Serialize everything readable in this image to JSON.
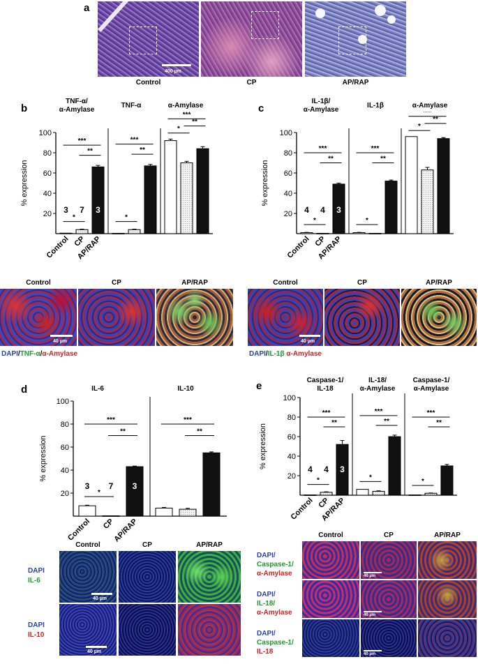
{
  "panel_a": {
    "label": "a",
    "captions": [
      "Control",
      "CP",
      "AP/RAP"
    ],
    "scale_bar": "400 µm"
  },
  "panel_b": {
    "label": "b",
    "headers": [
      "TNF-α/\nα-Amylase",
      "TNF-α",
      "α-Amylase"
    ],
    "ylabel": "% expression",
    "xlabels": [
      "Control",
      "CP",
      "AP/RAP"
    ],
    "n_labels": [
      "3",
      "7",
      "3"
    ],
    "yticks": [
      "100",
      "80",
      "60",
      "40",
      "20"
    ],
    "image_captions": [
      "Control",
      "CP",
      "AP/RAP"
    ],
    "scale_bar": "40 µm",
    "stain_legend": {
      "dapi": "DAPI",
      "sep1": "/",
      "marker": "TNF-α",
      "sep2": "/",
      "amylase": "α-Amylase"
    }
  },
  "panel_c": {
    "label": "c",
    "headers": [
      "IL-1β/\nα-Amylase",
      "IL-1β",
      "α-Amylase"
    ],
    "ylabel": "% expression",
    "xlabels": [
      "Control",
      "CP",
      "AP/RAP"
    ],
    "n_labels": [
      "4",
      "4",
      "3"
    ],
    "yticks": [
      "100",
      "80",
      "60",
      "40",
      "20"
    ],
    "image_captions": [
      "Control",
      "CP",
      "AP/RAP"
    ],
    "scale_bar": "40 µm",
    "stain_legend": {
      "dapi": "DAPI",
      "sep1": "/",
      "marker": "IL-1β",
      "sep2": " ",
      "amylase": "α-Amylase"
    }
  },
  "panel_d": {
    "label": "d",
    "headers": [
      "IL-6",
      "IL-10"
    ],
    "ylabel": "% expression",
    "xlabels": [
      "Control",
      "CP",
      "AP/RAP"
    ],
    "n_labels": [
      "3",
      "7",
      "3"
    ],
    "yticks": [
      "100",
      "80",
      "60",
      "40",
      "20"
    ],
    "image_captions": [
      "Control",
      "CP",
      "AP/RAP"
    ],
    "row_labels": [
      [
        "DAPI",
        "IL-6"
      ],
      [
        "DAPI",
        "IL-10"
      ]
    ],
    "scale_bar": "40 µm"
  },
  "panel_e": {
    "label": "e",
    "headers": [
      "Caspase-1/\nIL-18",
      "IL-18/\nα-Amylase",
      "Caspase-1/\nα-Amylase"
    ],
    "ylabel": "% expression",
    "xlabels": [
      "Control",
      "CP",
      "AP/RAP"
    ],
    "n_labels": [
      "4",
      "4",
      "3"
    ],
    "yticks": [
      "100",
      "80",
      "60",
      "40",
      "20"
    ],
    "image_captions": [
      "Control",
      "CP",
      "AP/RAP"
    ],
    "row_labels": [
      [
        "DAPI/",
        "Caspase-1/",
        "α-Amylase"
      ],
      [
        "DAPI/",
        "IL-18/",
        "α-Amylase"
      ],
      [
        "DAPI/",
        "Caspase-1/",
        "IL-18"
      ]
    ],
    "scale_bar": "40 µm"
  },
  "chart_data": [
    {
      "type": "bar",
      "panel": "b",
      "ylabel": "% expression",
      "ylim": [
        0,
        100
      ],
      "categories": [
        "Control",
        "CP",
        "AP/RAP"
      ],
      "groups": [
        {
          "name": "TNF-α/\nα-Amylase",
          "values": [
            0.5,
            4,
            66
          ],
          "errors": [
            0,
            0.5,
            1.5
          ],
          "brackets": [
            [
              0,
              2,
              "***"
            ],
            [
              1,
              2,
              "**"
            ],
            [
              0,
              1,
              "*"
            ]
          ]
        },
        {
          "name": "TNF-α",
          "values": [
            0.3,
            4,
            67
          ],
          "errors": [
            0,
            0.5,
            1.5
          ],
          "brackets": [
            [
              0,
              2,
              "***"
            ],
            [
              1,
              2,
              "**"
            ],
            [
              0,
              1,
              "*"
            ]
          ]
        },
        {
          "name": "α-Amylase",
          "values": [
            92,
            70,
            84
          ],
          "errors": [
            1.5,
            1.5,
            2
          ],
          "brackets": [
            [
              0,
              2,
              "***"
            ],
            [
              1,
              2,
              "**"
            ],
            [
              0,
              1,
              "*"
            ]
          ]
        }
      ]
    },
    {
      "type": "bar",
      "panel": "c",
      "ylabel": "% expression",
      "ylim": [
        0,
        100
      ],
      "categories": [
        "Control",
        "CP",
        "AP/RAP"
      ],
      "groups": [
        {
          "name": "IL-1β/\nα-Amylase",
          "values": [
            1,
            0.3,
            49
          ],
          "errors": [
            0.3,
            0,
            1
          ],
          "brackets": [
            [
              0,
              2,
              "***"
            ],
            [
              1,
              2,
              "**"
            ],
            [
              0,
              1,
              "*"
            ]
          ]
        },
        {
          "name": "IL-1β",
          "values": [
            1,
            0.3,
            52
          ],
          "errors": [
            0.3,
            0,
            1
          ],
          "brackets": [
            [
              0,
              2,
              "***"
            ],
            [
              1,
              2,
              "**"
            ],
            [
              0,
              1,
              "*"
            ]
          ]
        },
        {
          "name": "α-Amylase",
          "values": [
            96,
            63,
            94
          ],
          "errors": [
            0,
            2.5,
            1
          ],
          "brackets": [
            [
              0,
              2,
              "***"
            ],
            [
              1,
              2,
              "**"
            ],
            [
              0,
              1,
              "*"
            ]
          ]
        }
      ]
    },
    {
      "type": "bar",
      "panel": "d",
      "ylabel": "% expression",
      "ylim": [
        0,
        100
      ],
      "categories": [
        "Control",
        "CP",
        "AP/RAP"
      ],
      "groups": [
        {
          "name": "IL-6",
          "values": [
            9,
            0.3,
            43
          ],
          "errors": [
            0.5,
            0,
            0.5
          ],
          "brackets": [
            [
              0,
              2,
              "***"
            ],
            [
              1,
              2,
              "**"
            ],
            [
              0,
              1,
              "*"
            ]
          ]
        },
        {
          "name": "IL-10",
          "values": [
            7,
            6,
            55
          ],
          "errors": [
            0.5,
            0.8,
            0.8
          ],
          "brackets": [
            [
              0,
              2,
              "***"
            ],
            [
              1,
              2,
              "**"
            ]
          ]
        }
      ]
    },
    {
      "type": "bar",
      "panel": "e",
      "ylabel": "% expression",
      "ylim": [
        0,
        100
      ],
      "categories": [
        "Control",
        "CP",
        "AP/RAP"
      ],
      "groups": [
        {
          "name": "Caspase-1/\nIL-18",
          "values": [
            0.3,
            3,
            52
          ],
          "errors": [
            0,
            0.5,
            4
          ],
          "brackets": [
            [
              0,
              2,
              "***"
            ],
            [
              1,
              2,
              "**"
            ],
            [
              0,
              1,
              "*"
            ]
          ]
        },
        {
          "name": "IL-18/\nα-Amylase",
          "values": [
            6,
            4,
            60
          ],
          "errors": [
            0,
            0.5,
            1.5
          ],
          "brackets": [
            [
              0,
              2,
              "***"
            ],
            [
              1,
              2,
              "**"
            ],
            [
              0,
              1,
              "*"
            ]
          ]
        },
        {
          "name": "Caspase-1/\nα-Amylase",
          "values": [
            0.3,
            2,
            30
          ],
          "errors": [
            0,
            0.3,
            1.5
          ],
          "brackets": [
            [
              0,
              2,
              "***"
            ],
            [
              1,
              2,
              "**"
            ],
            [
              0,
              1,
              "*"
            ]
          ]
        }
      ]
    }
  ]
}
